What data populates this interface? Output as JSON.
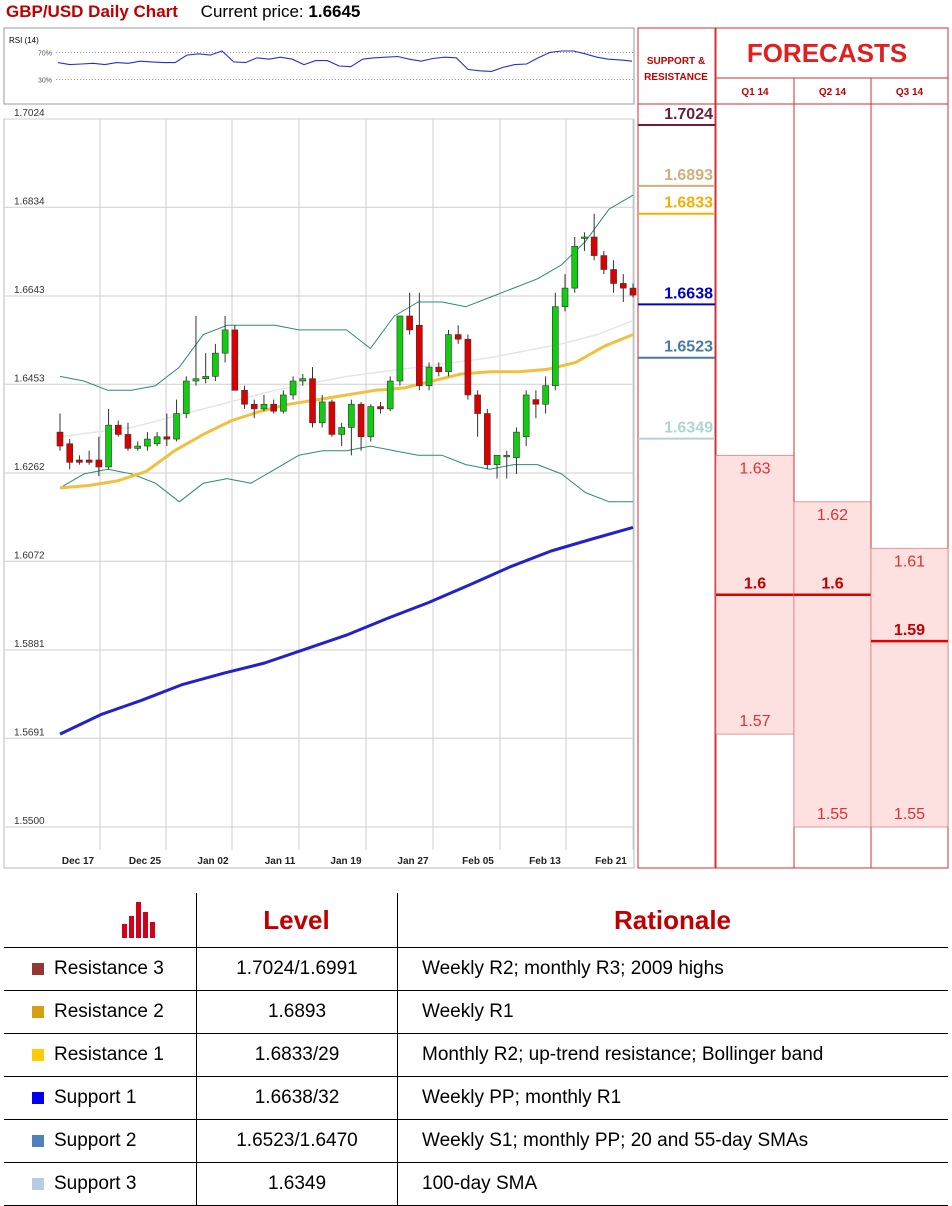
{
  "header": {
    "title": "GBP/USD Daily Chart",
    "price_label": "Current price:",
    "price": "1.6645"
  },
  "rsi": {
    "label": "RSI (14)",
    "levels": [
      "70%",
      "30%"
    ],
    "values": [
      55,
      52,
      53,
      54,
      52,
      55,
      54,
      57,
      56,
      55,
      55,
      66,
      68,
      66,
      72,
      56,
      55,
      62,
      60,
      63,
      60,
      52,
      58,
      58,
      50,
      49,
      60,
      62,
      63,
      64,
      60,
      57,
      61,
      63,
      62,
      45,
      43,
      42,
      48,
      52,
      53,
      62,
      70,
      72,
      72,
      68,
      63,
      60,
      59,
      57
    ]
  },
  "colors": {
    "resistance_3": "#7b2c3c",
    "resistance_2": "#c8a86a",
    "resistance_1": "#e8b200",
    "support_1": "#0000cc",
    "support_2": "#4a7aa0",
    "support_3": "#a9cfcf",
    "up_candle": "#11cc11",
    "down_candle": "#dd0000",
    "sma_slow": "#2222cc",
    "sma_mid": "#f0c040",
    "bollinger": "#2a8a7a"
  },
  "chart_data": {
    "type": "candlestick",
    "title": "GBP/USD Daily Chart",
    "ylim": [
      1.55,
      1.7024
    ],
    "y_ticks": [
      "1.7024",
      "1.6834",
      "1.6643",
      "1.6453",
      "1.6262",
      "1.6072",
      "1.5881",
      "1.5691",
      "1.5500"
    ],
    "x_ticks": [
      "Dec 17",
      "Dec 25",
      "Jan 02",
      "Jan 11",
      "Jan 19",
      "Jan 27",
      "Feb 05",
      "Feb 13",
      "Feb 21"
    ],
    "grid": true,
    "candles": [
      {
        "o": 1.635,
        "h": 1.639,
        "l": 1.631,
        "c": 1.632
      },
      {
        "o": 1.6325,
        "h": 1.6335,
        "l": 1.627,
        "c": 1.6285
      },
      {
        "o": 1.629,
        "h": 1.63,
        "l": 1.628,
        "c": 1.6285
      },
      {
        "o": 1.629,
        "h": 1.631,
        "l": 1.628,
        "c": 1.6285
      },
      {
        "o": 1.629,
        "h": 1.634,
        "l": 1.6255,
        "c": 1.6275
      },
      {
        "o": 1.6275,
        "h": 1.64,
        "l": 1.627,
        "c": 1.6365
      },
      {
        "o": 1.6365,
        "h": 1.6375,
        "l": 1.634,
        "c": 1.6345
      },
      {
        "o": 1.6345,
        "h": 1.637,
        "l": 1.631,
        "c": 1.6315
      },
      {
        "o": 1.6315,
        "h": 1.633,
        "l": 1.631,
        "c": 1.632
      },
      {
        "o": 1.632,
        "h": 1.635,
        "l": 1.631,
        "c": 1.6335
      },
      {
        "o": 1.6325,
        "h": 1.635,
        "l": 1.632,
        "c": 1.634
      },
      {
        "o": 1.634,
        "h": 1.639,
        "l": 1.632,
        "c": 1.6335
      },
      {
        "o": 1.6335,
        "h": 1.642,
        "l": 1.633,
        "c": 1.639
      },
      {
        "o": 1.639,
        "h": 1.647,
        "l": 1.638,
        "c": 1.646
      },
      {
        "o": 1.646,
        "h": 1.66,
        "l": 1.645,
        "c": 1.6465
      },
      {
        "o": 1.6465,
        "h": 1.652,
        "l": 1.6455,
        "c": 1.647
      },
      {
        "o": 1.647,
        "h": 1.654,
        "l": 1.646,
        "c": 1.652
      },
      {
        "o": 1.652,
        "h": 1.66,
        "l": 1.65,
        "c": 1.657
      },
      {
        "o": 1.657,
        "h": 1.658,
        "l": 1.644,
        "c": 1.644
      },
      {
        "o": 1.644,
        "h": 1.645,
        "l": 1.64,
        "c": 1.641
      },
      {
        "o": 1.641,
        "h": 1.642,
        "l": 1.638,
        "c": 1.64
      },
      {
        "o": 1.64,
        "h": 1.643,
        "l": 1.6395,
        "c": 1.641
      },
      {
        "o": 1.641,
        "h": 1.642,
        "l": 1.639,
        "c": 1.6395
      },
      {
        "o": 1.6395,
        "h": 1.644,
        "l": 1.639,
        "c": 1.643
      },
      {
        "o": 1.643,
        "h": 1.647,
        "l": 1.642,
        "c": 1.646
      },
      {
        "o": 1.646,
        "h": 1.6475,
        "l": 1.645,
        "c": 1.6465
      },
      {
        "o": 1.6465,
        "h": 1.649,
        "l": 1.636,
        "c": 1.637
      },
      {
        "o": 1.637,
        "h": 1.643,
        "l": 1.636,
        "c": 1.6415
      },
      {
        "o": 1.6415,
        "h": 1.642,
        "l": 1.634,
        "c": 1.6345
      },
      {
        "o": 1.6345,
        "h": 1.637,
        "l": 1.632,
        "c": 1.636
      },
      {
        "o": 1.636,
        "h": 1.642,
        "l": 1.63,
        "c": 1.641
      },
      {
        "o": 1.641,
        "h": 1.6415,
        "l": 1.631,
        "c": 1.634
      },
      {
        "o": 1.634,
        "h": 1.641,
        "l": 1.633,
        "c": 1.6405
      },
      {
        "o": 1.6405,
        "h": 1.6415,
        "l": 1.639,
        "c": 1.64
      },
      {
        "o": 1.64,
        "h": 1.647,
        "l": 1.6395,
        "c": 1.646
      },
      {
        "o": 1.646,
        "h": 1.66,
        "l": 1.645,
        "c": 1.66
      },
      {
        "o": 1.66,
        "h": 1.665,
        "l": 1.656,
        "c": 1.657
      },
      {
        "o": 1.658,
        "h": 1.665,
        "l": 1.644,
        "c": 1.645
      },
      {
        "o": 1.645,
        "h": 1.65,
        "l": 1.644,
        "c": 1.649
      },
      {
        "o": 1.649,
        "h": 1.65,
        "l": 1.647,
        "c": 1.648
      },
      {
        "o": 1.648,
        "h": 1.657,
        "l": 1.647,
        "c": 1.656
      },
      {
        "o": 1.656,
        "h": 1.658,
        "l": 1.654,
        "c": 1.655
      },
      {
        "o": 1.655,
        "h": 1.656,
        "l": 1.642,
        "c": 1.643
      },
      {
        "o": 1.643,
        "h": 1.644,
        "l": 1.634,
        "c": 1.639
      },
      {
        "o": 1.639,
        "h": 1.64,
        "l": 1.627,
        "c": 1.628
      },
      {
        "o": 1.628,
        "h": 1.63,
        "l": 1.625,
        "c": 1.63
      },
      {
        "o": 1.63,
        "h": 1.631,
        "l": 1.625,
        "c": 1.63
      },
      {
        "o": 1.6295,
        "h": 1.636,
        "l": 1.626,
        "c": 1.635
      },
      {
        "o": 1.634,
        "h": 1.644,
        "l": 1.632,
        "c": 1.643
      },
      {
        "o": 1.642,
        "h": 1.644,
        "l": 1.638,
        "c": 1.641
      },
      {
        "o": 1.641,
        "h": 1.647,
        "l": 1.639,
        "c": 1.645
      },
      {
        "o": 1.645,
        "h": 1.665,
        "l": 1.644,
        "c": 1.662
      },
      {
        "o": 1.662,
        "h": 1.669,
        "l": 1.661,
        "c": 1.666
      },
      {
        "o": 1.666,
        "h": 1.677,
        "l": 1.665,
        "c": 1.675
      },
      {
        "o": 1.677,
        "h": 1.678,
        "l": 1.674,
        "c": 1.677
      },
      {
        "o": 1.677,
        "h": 1.682,
        "l": 1.672,
        "c": 1.673
      },
      {
        "o": 1.673,
        "h": 1.674,
        "l": 1.669,
        "c": 1.67
      },
      {
        "o": 1.67,
        "h": 1.672,
        "l": 1.665,
        "c": 1.667
      },
      {
        "o": 1.667,
        "h": 1.669,
        "l": 1.663,
        "c": 1.666
      },
      {
        "o": 1.666,
        "h": 1.667,
        "l": 1.664,
        "c": 1.6645
      }
    ],
    "sma_slow": [
      1.57,
      1.5742,
      1.5773,
      1.5807,
      1.5831,
      1.5853,
      1.5883,
      1.5913,
      1.5949,
      1.5983,
      1.6021,
      1.606,
      1.6094,
      1.612,
      1.6145
    ],
    "sma_mid": [
      1.623,
      1.6235,
      1.6245,
      1.6265,
      1.631,
      1.6345,
      1.6375,
      1.6395,
      1.641,
      1.642,
      1.643,
      1.644,
      1.6445,
      1.646,
      1.6475,
      1.648,
      1.648,
      1.6485,
      1.65,
      1.6535,
      1.656
    ],
    "sma_100": [
      1.634,
      1.635,
      1.636,
      1.638,
      1.64,
      1.642,
      1.644,
      1.6455,
      1.647,
      1.648,
      1.649,
      1.65,
      1.651,
      1.6525,
      1.654,
      1.656,
      1.659
    ],
    "bollinger_upper": [
      1.647,
      1.646,
      1.644,
      1.644,
      1.645,
      1.649,
      1.656,
      1.658,
      1.658,
      1.658,
      1.657,
      1.657,
      1.657,
      1.653,
      1.66,
      1.663,
      1.663,
      1.662,
      1.664,
      1.666,
      1.668,
      1.671,
      1.676,
      1.683,
      1.686
    ],
    "bollinger_lower": [
      1.623,
      1.626,
      1.627,
      1.626,
      1.624,
      1.62,
      1.624,
      1.625,
      1.624,
      1.627,
      1.63,
      1.631,
      1.631,
      1.632,
      1.631,
      1.63,
      1.63,
      1.628,
      1.627,
      1.628,
      1.628,
      1.626,
      1.622,
      1.62,
      1.62
    ]
  },
  "support_resistance": {
    "header": "SUPPORT & RESISTANCE",
    "levels": [
      {
        "label": "1.7024",
        "value": 1.7024,
        "color": "#6a1f3a",
        "bold": true
      },
      {
        "label": "1.6893",
        "value": 1.6893,
        "color": "#d0b07a",
        "bold": true
      },
      {
        "label": "1.6833",
        "value": 1.6833,
        "color": "#f2b000",
        "bold": true
      },
      {
        "label": "1.6638",
        "value": 1.6638,
        "color": "#0000cc",
        "bold": true
      },
      {
        "label": "1.6523",
        "value": 1.6523,
        "color": "#4a7aa0",
        "bold": true
      },
      {
        "label": "1.6349",
        "value": 1.6349,
        "color": "#b0d4d4",
        "bold": true
      }
    ]
  },
  "forecasts": {
    "title": "FORECASTS",
    "columns": [
      {
        "label": "Q1 14",
        "high": 1.63,
        "high_label": "1.63",
        "mid": 1.6,
        "mid_label": "1.6",
        "low": 1.57,
        "low_label": "1.57"
      },
      {
        "label": "Q2 14",
        "high": 1.62,
        "high_label": "1.62",
        "mid": 1.6,
        "mid_label": "1.6",
        "low": 1.55,
        "low_label": "1.55"
      },
      {
        "label": "Q3 14",
        "high": 1.61,
        "high_label": "1.61",
        "mid": 1.59,
        "mid_label": "1.59",
        "low": 1.55,
        "low_label": "1.55"
      }
    ]
  },
  "table": {
    "headers": {
      "level": "Level",
      "rationale": "Rationale"
    },
    "rows": [
      {
        "name": "Resistance 3",
        "color": "#943634",
        "level": "1.7024/1.6991",
        "rationale": "Weekly R2; monthly R3; 2009 highs"
      },
      {
        "name": "Resistance 2",
        "color": "#d4a010",
        "level": "1.6893",
        "rationale": "Weekly R1"
      },
      {
        "name": "Resistance 1",
        "color": "#ffcc00",
        "level": "1.6833/29",
        "rationale": "Monthly R2; up-trend resistance; Bollinger band"
      },
      {
        "name": "Support 1",
        "color": "#0000ee",
        "level": "1.6638/32",
        "rationale": "Weekly PP; monthly R1"
      },
      {
        "name": "Support 2",
        "color": "#4f81bd",
        "level": "1.6523/1.6470",
        "rationale": "Weekly S1; monthly PP; 20 and 55-day SMAs"
      },
      {
        "name": "Support 3",
        "color": "#b8cce4",
        "level": "1.6349",
        "rationale": "100-day SMA"
      }
    ]
  }
}
